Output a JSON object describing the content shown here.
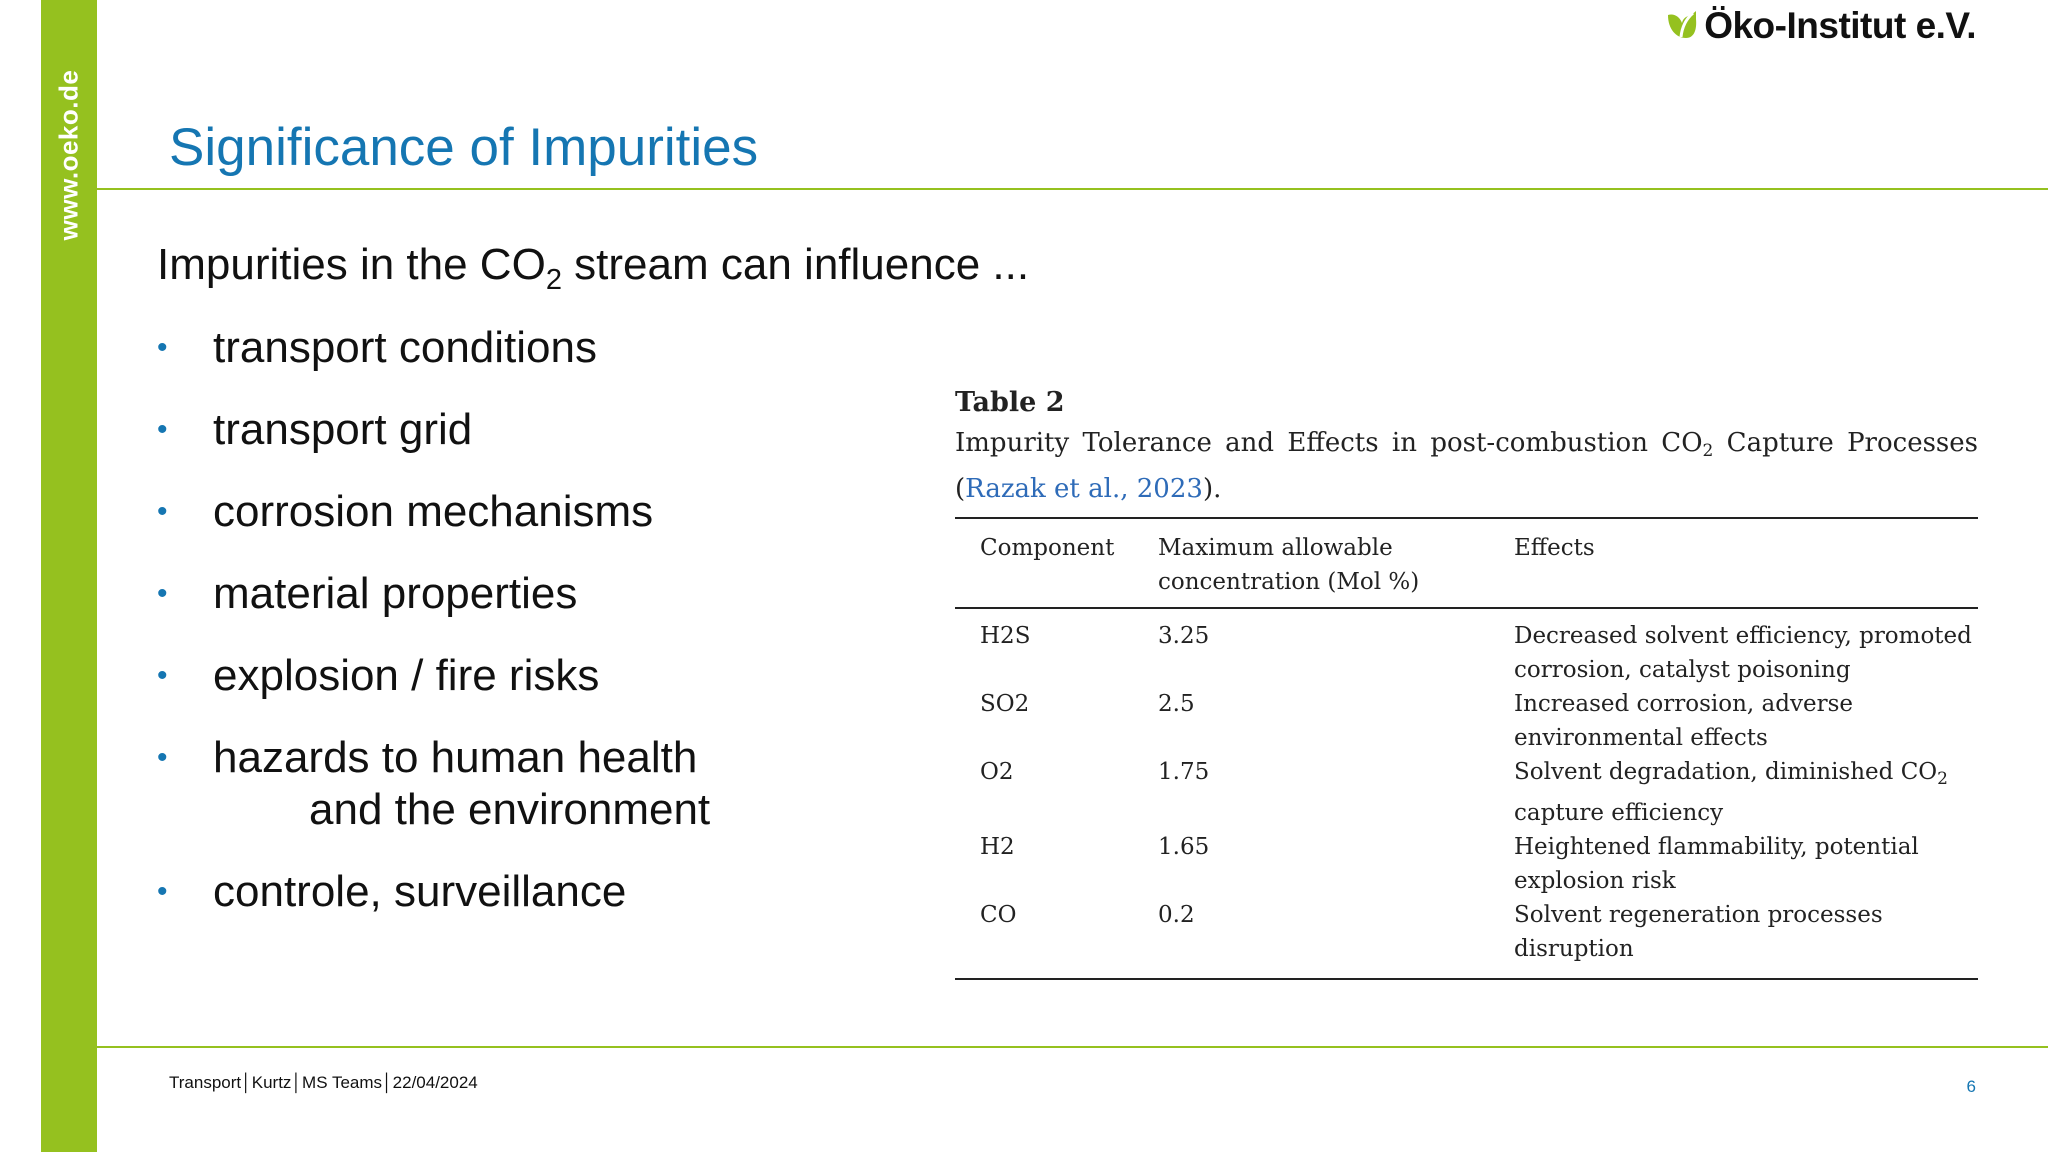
{
  "sidebar": {
    "url": "www.oeko.de",
    "color": "#95c11f"
  },
  "logo": {
    "text": "Öko-Institut e.V.",
    "icon": "leaf-icon",
    "color": "#95c11f"
  },
  "slide": {
    "title": "Significance of Impurities",
    "title_color": "#1576b2",
    "intro": {
      "before": "Impurities in the CO",
      "sub": "2",
      "after": " stream  can influence ..."
    },
    "bullets": [
      "transport conditions",
      "transport grid",
      "corrosion mechanisms",
      "material properties",
      "explosion / fire risks",
      "hazards to human health",
      "controle, surveillance"
    ],
    "bullet_continuation": "and the environment"
  },
  "table": {
    "label": "Table 2",
    "caption": {
      "before": "Impurity Tolerance and Effects in post-combustion CO",
      "sub": "2",
      "after": " Capture Processes"
    },
    "ref": {
      "open": "(",
      "text": "Razak et al., 2023",
      "close": ")."
    },
    "headers": [
      "Component",
      "Maximum allowable concentration (Mol %)",
      "Effects"
    ],
    "rows": [
      {
        "component": "H2S",
        "max": "3.25",
        "effects": "Decreased solvent efficiency, promoted corrosion, catalyst poisoning"
      },
      {
        "component": "SO2",
        "max": "2.5",
        "effects": "Increased corrosion, adverse environmental effects"
      },
      {
        "component": "O2",
        "max": "1.75",
        "effects_before": "Solvent degradation, diminished CO",
        "effects_sub": "2",
        "effects_after": " capture efficiency"
      },
      {
        "component": "H2",
        "max": "1.65",
        "effects": "Heightened flammability, potential explosion risk"
      },
      {
        "component": "CO",
        "max": "0.2",
        "effects": "Solvent regeneration processes disruption"
      }
    ]
  },
  "footer": {
    "text": "Transport│Kurtz│MS Teams│22/04/2024",
    "page": "6"
  }
}
